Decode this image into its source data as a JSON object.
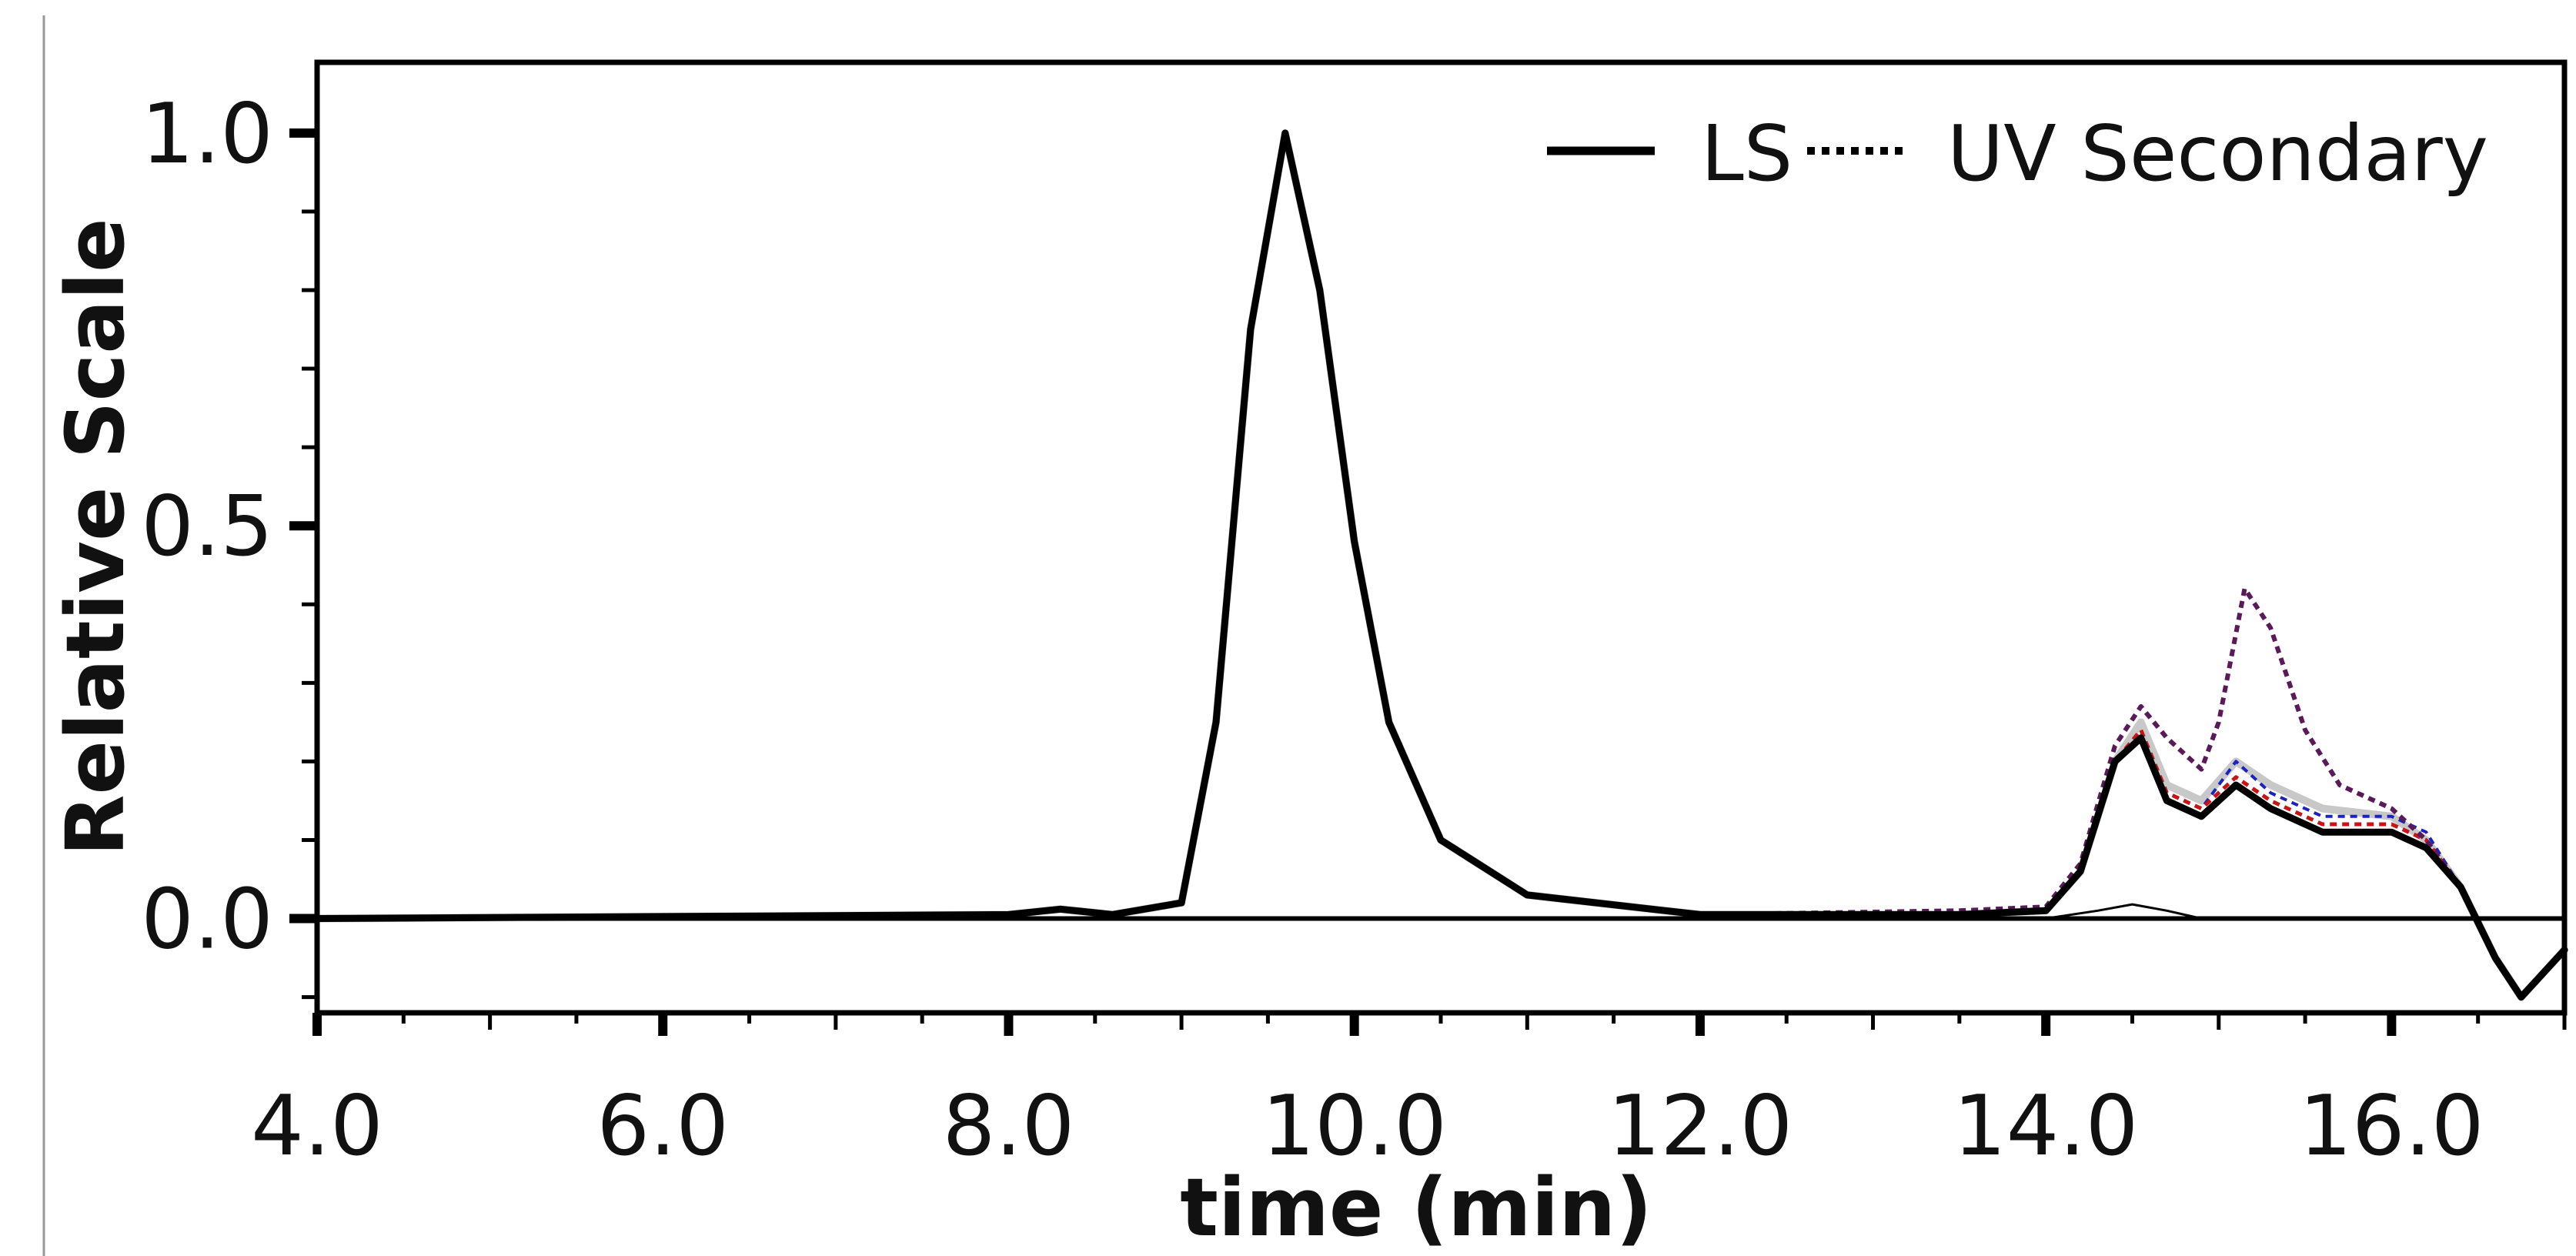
{
  "chart_data": {
    "type": "line",
    "xlabel": "time (min)",
    "ylabel": "Relative Scale",
    "xlim": [
      4.0,
      17.0
    ],
    "ylim": [
      -0.12,
      1.09
    ],
    "x_ticks": [
      "4.0",
      "6.0",
      "8.0",
      "10.0",
      "12.0",
      "14.0",
      "16.0"
    ],
    "x_tick_values": [
      4.0,
      6.0,
      8.0,
      10.0,
      12.0,
      14.0,
      16.0
    ],
    "y_ticks": [
      "0.0",
      "0.5",
      "1.0"
    ],
    "y_tick_values": [
      0.0,
      0.5,
      1.0
    ],
    "grid": false,
    "legend": {
      "position": "top-right",
      "entries": [
        {
          "label": "LS",
          "style": "solid"
        },
        {
          "label": "UV Secondary",
          "style": "dotted"
        }
      ]
    },
    "series": [
      {
        "color": "#000000",
        "style": "solid",
        "width": 3,
        "x": [
          4.0,
          14.0,
          14.3,
          14.5,
          14.7,
          14.9,
          17.0
        ],
        "y": [
          0.0,
          0.0,
          0.01,
          0.018,
          0.01,
          0.0,
          0.0
        ]
      },
      {
        "color": "#c8c8c8",
        "style": "solid",
        "width": 10,
        "x": [
          4.0,
          8.0,
          8.3,
          8.6,
          9.0,
          9.2,
          9.4,
          9.6,
          9.8,
          10.0,
          10.2,
          10.5,
          11.0,
          12.0,
          13.5,
          14.0,
          14.2,
          14.4,
          14.55,
          14.7,
          14.9,
          15.1,
          15.3,
          15.6,
          16.0,
          16.2,
          16.4,
          16.6,
          16.75,
          17.0
        ],
        "y": [
          0.0,
          0.005,
          0.012,
          0.005,
          0.02,
          0.25,
          0.75,
          1.0,
          0.8,
          0.48,
          0.25,
          0.1,
          0.03,
          0.005,
          0.005,
          0.01,
          0.06,
          0.2,
          0.25,
          0.17,
          0.15,
          0.2,
          0.17,
          0.14,
          0.13,
          0.1,
          0.04,
          -0.05,
          -0.1,
          -0.04
        ]
      },
      {
        "color": "#1a22c0",
        "style": "dotted",
        "width": 4,
        "x": [
          4.0,
          8.0,
          8.3,
          8.6,
          9.0,
          9.2,
          9.4,
          9.6,
          9.8,
          10.0,
          10.2,
          10.5,
          11.0,
          12.0,
          13.5,
          14.0,
          14.2,
          14.4,
          14.55,
          14.7,
          14.9,
          15.1,
          15.3,
          15.6,
          16.0,
          16.2,
          16.4,
          16.6,
          16.75,
          17.0
        ],
        "y": [
          0.0,
          0.005,
          0.012,
          0.005,
          0.02,
          0.25,
          0.75,
          1.0,
          0.8,
          0.48,
          0.25,
          0.1,
          0.03,
          0.005,
          0.005,
          0.01,
          0.06,
          0.2,
          0.24,
          0.16,
          0.14,
          0.2,
          0.16,
          0.13,
          0.13,
          0.11,
          0.04,
          -0.05,
          -0.1,
          -0.04
        ]
      },
      {
        "color": "#c81414",
        "style": "dotted",
        "width": 5,
        "x": [
          4.0,
          8.0,
          8.3,
          8.6,
          9.0,
          9.2,
          9.4,
          9.6,
          9.8,
          10.0,
          10.2,
          10.5,
          11.0,
          12.0,
          13.5,
          14.0,
          14.2,
          14.4,
          14.55,
          14.7,
          14.9,
          15.1,
          15.3,
          15.6,
          16.0,
          16.2,
          16.4,
          16.6,
          16.75,
          17.0
        ],
        "y": [
          0.0,
          0.005,
          0.012,
          0.005,
          0.02,
          0.25,
          0.75,
          1.0,
          0.8,
          0.48,
          0.25,
          0.1,
          0.03,
          0.005,
          0.005,
          0.01,
          0.06,
          0.2,
          0.24,
          0.16,
          0.14,
          0.18,
          0.15,
          0.12,
          0.12,
          0.1,
          0.04,
          -0.05,
          -0.1,
          -0.04
        ]
      },
      {
        "color": "#5a1a5a",
        "style": "dotted",
        "width": 6,
        "x": [
          4.0,
          8.0,
          8.3,
          8.6,
          9.0,
          9.2,
          9.4,
          9.6,
          9.8,
          10.0,
          10.2,
          10.5,
          11.0,
          12.0,
          13.5,
          14.0,
          14.2,
          14.4,
          14.55,
          14.7,
          14.9,
          15.0,
          15.15,
          15.3,
          15.5,
          15.7,
          16.0,
          16.2,
          16.4,
          16.6,
          16.75,
          17.0
        ],
        "y": [
          0.0,
          0.005,
          0.012,
          0.005,
          0.02,
          0.25,
          0.75,
          1.0,
          0.8,
          0.48,
          0.25,
          0.1,
          0.03,
          0.005,
          0.01,
          0.015,
          0.07,
          0.22,
          0.27,
          0.23,
          0.19,
          0.25,
          0.42,
          0.37,
          0.24,
          0.17,
          0.14,
          0.1,
          0.04,
          -0.05,
          -0.1,
          -0.04
        ]
      },
      {
        "color": "#000000",
        "style": "solid",
        "width": 9,
        "x": [
          4.0,
          8.0,
          8.3,
          8.6,
          9.0,
          9.2,
          9.4,
          9.6,
          9.8,
          10.0,
          10.2,
          10.5,
          11.0,
          12.0,
          13.5,
          14.0,
          14.2,
          14.4,
          14.55,
          14.7,
          14.9,
          15.1,
          15.3,
          15.6,
          16.0,
          16.2,
          16.4,
          16.6,
          16.75,
          17.0
        ],
        "y": [
          0.0,
          0.005,
          0.012,
          0.005,
          0.02,
          0.25,
          0.75,
          1.0,
          0.8,
          0.48,
          0.25,
          0.1,
          0.03,
          0.005,
          0.005,
          0.01,
          0.06,
          0.2,
          0.23,
          0.15,
          0.13,
          0.17,
          0.14,
          0.11,
          0.11,
          0.09,
          0.04,
          -0.05,
          -0.1,
          -0.04
        ]
      }
    ]
  }
}
